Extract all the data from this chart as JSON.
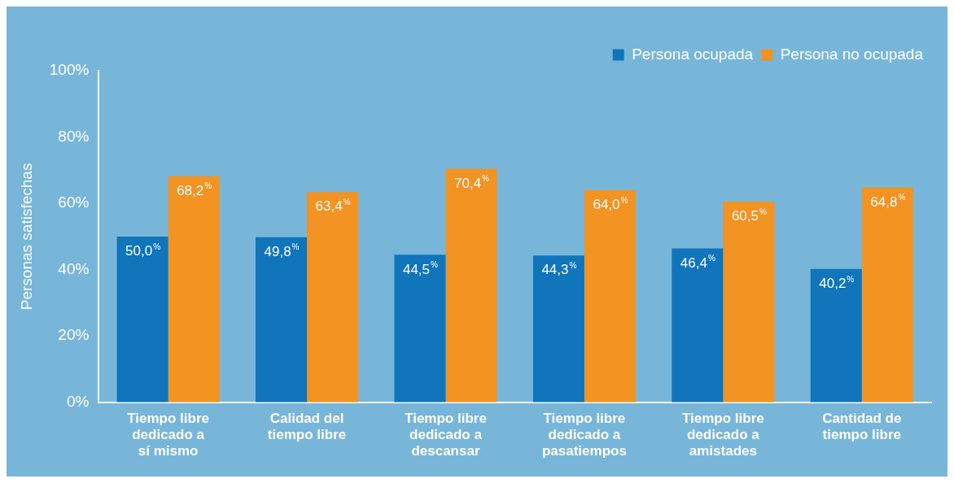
{
  "chart_data": {
    "type": "bar",
    "ylabel": "Personas satisfechas",
    "categories": [
      "Tiempo libre dedicado a sí mismo",
      "Calidad del tiempo libre",
      "Tiempo libre dedicado a descansar",
      "Tiempo libre dedicado a pasatiempos",
      "Tiempo libre dedicado a amistades",
      "Cantidad de tiempo libre"
    ],
    "series": [
      {
        "name": "Persona ocupada",
        "color": "#1075bb",
        "values": [
          50.0,
          49.8,
          44.5,
          44.3,
          46.4,
          40.2
        ],
        "value_labels": [
          "50,0$^{%}$",
          "49,8$^{%}$",
          "44,5$^{%}$",
          "44,3$^{%}$",
          "46,4$^{%}$",
          "40,2$^{%}$"
        ]
      },
      {
        "name": "Persona no ocupada",
        "color": "#f39322",
        "values": [
          68.2,
          63.4,
          70.4,
          64.0,
          60.5,
          64.8
        ],
        "value_labels": [
          "68,2$^{%}$",
          "63,4$^{%}$",
          "70,4$^{%}$",
          "64,0$^{%}$",
          "60,5$^{%}$",
          "64,8$^{%}$"
        ]
      }
    ],
    "ylim": [
      0,
      100
    ],
    "yticks": [
      {
        "value": 0,
        "label": "0%"
      },
      {
        "value": 20,
        "label": "20%"
      },
      {
        "value": 40,
        "label": "40%"
      },
      {
        "value": 60,
        "label": "60%"
      },
      {
        "value": 80,
        "label": "80%"
      },
      {
        "value": 100,
        "label": "100%"
      }
    ],
    "grid": false,
    "legend": "top right"
  }
}
